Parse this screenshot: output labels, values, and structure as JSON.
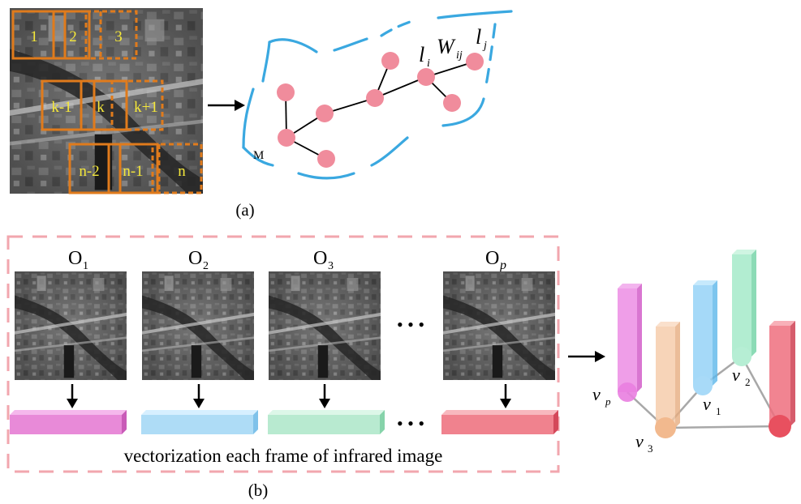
{
  "panel_a": {
    "caption": "(a)",
    "patches": [
      "1",
      "2",
      "3",
      "k-1",
      "k",
      "k+1",
      "n-2",
      "n-1",
      "n"
    ],
    "graph_labels": {
      "manifold": "M",
      "node_i": "l",
      "node_i_sub": "i",
      "weight": "W",
      "weight_sub": "ij",
      "node_j": "l",
      "node_j_sub": "j"
    }
  },
  "panel_b": {
    "caption": "(b)",
    "frames": [
      {
        "label": "O",
        "sub": "1",
        "italic_sub": false
      },
      {
        "label": "O",
        "sub": "2",
        "italic_sub": false
      },
      {
        "label": "O",
        "sub": "3",
        "italic_sub": false
      },
      {
        "label": "O",
        "sub": "p",
        "italic_sub": true
      }
    ],
    "ellipsis": "• • •",
    "vector_ellipsis": "• • •",
    "description": "vectorization each frame of infrared image",
    "vertices": [
      {
        "label": "v",
        "sub": "p"
      },
      {
        "label": "v",
        "sub": "3"
      },
      {
        "label": "v",
        "sub": "1"
      },
      {
        "label": "v",
        "sub": "2"
      }
    ]
  },
  "colors": {
    "patch_border": "#e07b1c",
    "manifold": "#3aa8e0",
    "node": "#f08c9c",
    "dashed_box": "#f2a6ae",
    "vector_pink": "#e88ad8",
    "vector_blue": "#aedcf6",
    "vector_green": "#b8ead0",
    "vector_red": "#f0828e",
    "pillar_magenta": "#e97ee0",
    "pillar_orange": "#f5c9a6",
    "pillar_blue": "#8fd0f6",
    "pillar_green": "#9fe8c6",
    "pillar_red": "#ee6f7e"
  }
}
